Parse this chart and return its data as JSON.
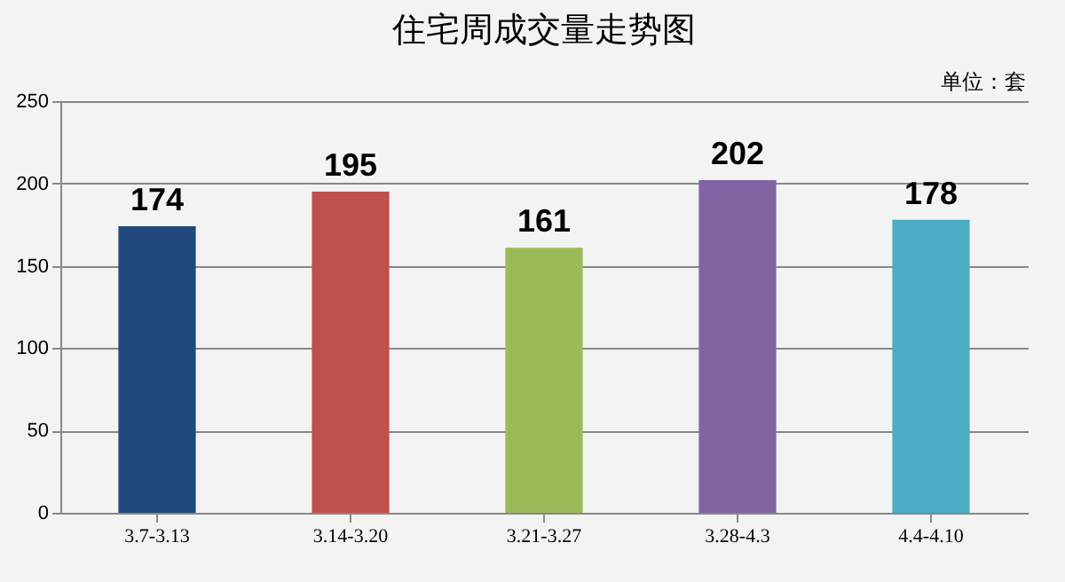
{
  "chart_data": {
    "type": "bar",
    "title": "住宅周成交量走势图",
    "annotations": [
      "单位：套"
    ],
    "categories": [
      "3.7-3.13",
      "3.14-3.20",
      "3.21-3.27",
      "3.28-4.3",
      "4.4-4.10"
    ],
    "values": [
      174,
      195,
      161,
      202,
      178
    ],
    "colors": [
      "#1f497d",
      "#c0504d",
      "#9bbb59",
      "#8064a2",
      "#4bacc6"
    ],
    "ylim": [
      0,
      250
    ],
    "yticks": [
      0,
      50,
      100,
      150,
      200,
      250
    ],
    "grid": "y",
    "data_labels": true
  }
}
